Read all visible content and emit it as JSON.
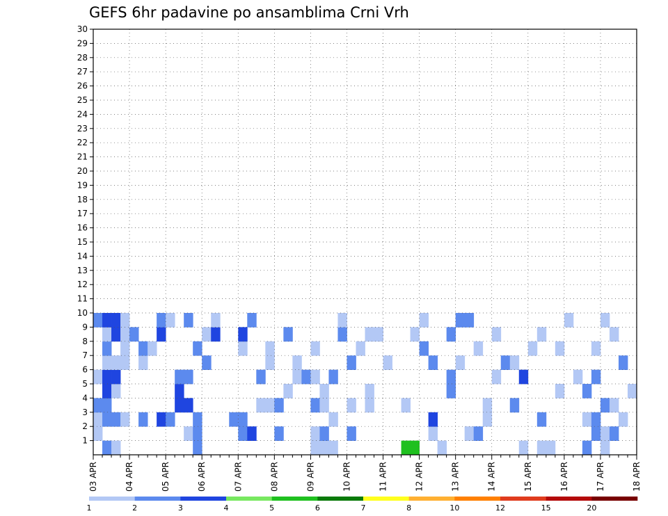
{
  "chart_data": {
    "type": "heatmap",
    "title": "GEFS 6hr padavine po ansamblima Crni Vrh",
    "xlabel": "",
    "ylabel": "",
    "x_tick_labels": [
      "03 APR",
      "04 APR",
      "05 APR",
      "06 APR",
      "07 APR",
      "08 APR",
      "09 APR",
      "10 APR",
      "11 APR",
      "12 APR",
      "13 APR",
      "14 APR",
      "15 APR",
      "16 APR",
      "17 APR",
      "18 APR"
    ],
    "y_tick_labels": [
      "1",
      "2",
      "3",
      "4",
      "5",
      "6",
      "7",
      "8",
      "9",
      "10",
      "11",
      "12",
      "13",
      "14",
      "15",
      "16",
      "17",
      "18",
      "19",
      "20",
      "21",
      "22",
      "23",
      "24",
      "25",
      "26",
      "27",
      "28",
      "29",
      "30"
    ],
    "xlim": [
      0,
      60
    ],
    "ylim": [
      0,
      30
    ],
    "x_unit_note": "6-hour steps after 03 APR 00Z",
    "grid": true,
    "legend_levels": [
      "1",
      "2",
      "3",
      "4",
      "5",
      "6",
      "7",
      "8",
      "10",
      "12",
      "15",
      "20"
    ],
    "legend_colors": [
      "#b3c8f5",
      "#5c8aee",
      "#1f45e0",
      "#78e860",
      "#1fc01f",
      "#0a7a0a",
      "#ffff1e",
      "#ffb032",
      "#ff8000",
      "#e03c1e",
      "#b40a0a",
      "#780000"
    ],
    "cells": [
      [
        1,
        1,
        2
      ],
      [
        2,
        1,
        1
      ],
      [
        34,
        1,
        5
      ],
      [
        35,
        1,
        5
      ],
      [
        38,
        1,
        1
      ],
      [
        11,
        1,
        2
      ],
      [
        49,
        1,
        1
      ],
      [
        50,
        1,
        1
      ],
      [
        54,
        1,
        2
      ],
      [
        56,
        1,
        1
      ],
      [
        47,
        1,
        1
      ],
      [
        25,
        1,
        1
      ],
      [
        24,
        1,
        1
      ],
      [
        26,
        1,
        1
      ],
      [
        0,
        2,
        1
      ],
      [
        10,
        2,
        1
      ],
      [
        11,
        2,
        2
      ],
      [
        16,
        2,
        2
      ],
      [
        17,
        2,
        3
      ],
      [
        20,
        2,
        2
      ],
      [
        24,
        2,
        1
      ],
      [
        25,
        2,
        2
      ],
      [
        28,
        2,
        2
      ],
      [
        37,
        2,
        1
      ],
      [
        41,
        2,
        1
      ],
      [
        42,
        2,
        2
      ],
      [
        55,
        2,
        2
      ],
      [
        56,
        2,
        1
      ],
      [
        57,
        2,
        2
      ],
      [
        0,
        3,
        1
      ],
      [
        1,
        3,
        2
      ],
      [
        2,
        3,
        2
      ],
      [
        3,
        3,
        1
      ],
      [
        5,
        3,
        2
      ],
      [
        7,
        3,
        3
      ],
      [
        8,
        3,
        2
      ],
      [
        11,
        3,
        2
      ],
      [
        15,
        3,
        2
      ],
      [
        16,
        3,
        2
      ],
      [
        26,
        3,
        1
      ],
      [
        37,
        3,
        3
      ],
      [
        43,
        3,
        1
      ],
      [
        49,
        3,
        2
      ],
      [
        54,
        3,
        1
      ],
      [
        55,
        3,
        2
      ],
      [
        58,
        3,
        1
      ],
      [
        0,
        4,
        2
      ],
      [
        1,
        4,
        2
      ],
      [
        9,
        4,
        3
      ],
      [
        10,
        4,
        3
      ],
      [
        18,
        4,
        1
      ],
      [
        19,
        4,
        1
      ],
      [
        20,
        4,
        2
      ],
      [
        24,
        4,
        2
      ],
      [
        25,
        4,
        1
      ],
      [
        28,
        4,
        1
      ],
      [
        30,
        4,
        1
      ],
      [
        34,
        4,
        1
      ],
      [
        43,
        4,
        1
      ],
      [
        46,
        4,
        2
      ],
      [
        56,
        4,
        2
      ],
      [
        57,
        4,
        1
      ],
      [
        1,
        5,
        3
      ],
      [
        2,
        5,
        1
      ],
      [
        9,
        5,
        3
      ],
      [
        21,
        5,
        1
      ],
      [
        25,
        5,
        1
      ],
      [
        30,
        5,
        1
      ],
      [
        39,
        5,
        2
      ],
      [
        51,
        5,
        1
      ],
      [
        54,
        5,
        2
      ],
      [
        59,
        5,
        1
      ],
      [
        0,
        6,
        1
      ],
      [
        1,
        6,
        3
      ],
      [
        2,
        6,
        3
      ],
      [
        9,
        6,
        2
      ],
      [
        10,
        6,
        2
      ],
      [
        18,
        6,
        2
      ],
      [
        22,
        6,
        1
      ],
      [
        23,
        6,
        2
      ],
      [
        24,
        6,
        1
      ],
      [
        26,
        6,
        2
      ],
      [
        39,
        6,
        2
      ],
      [
        44,
        6,
        1
      ],
      [
        47,
        6,
        3
      ],
      [
        53,
        6,
        1
      ],
      [
        55,
        6,
        2
      ],
      [
        1,
        7,
        1
      ],
      [
        2,
        7,
        1
      ],
      [
        3,
        7,
        1
      ],
      [
        5,
        7,
        1
      ],
      [
        12,
        7,
        2
      ],
      [
        19,
        7,
        1
      ],
      [
        22,
        7,
        1
      ],
      [
        28,
        7,
        2
      ],
      [
        32,
        7,
        1
      ],
      [
        37,
        7,
        2
      ],
      [
        40,
        7,
        1
      ],
      [
        45,
        7,
        2
      ],
      [
        46,
        7,
        1
      ],
      [
        58,
        7,
        2
      ],
      [
        1,
        8,
        2
      ],
      [
        3,
        8,
        1
      ],
      [
        5,
        8,
        2
      ],
      [
        6,
        8,
        1
      ],
      [
        11,
        8,
        2
      ],
      [
        16,
        8,
        1
      ],
      [
        19,
        8,
        1
      ],
      [
        24,
        8,
        1
      ],
      [
        29,
        8,
        1
      ],
      [
        36,
        8,
        2
      ],
      [
        42,
        8,
        1
      ],
      [
        48,
        8,
        1
      ],
      [
        51,
        8,
        1
      ],
      [
        55,
        8,
        1
      ],
      [
        1,
        9,
        1
      ],
      [
        2,
        9,
        3
      ],
      [
        3,
        9,
        1
      ],
      [
        4,
        9,
        2
      ],
      [
        7,
        9,
        3
      ],
      [
        12,
        9,
        1
      ],
      [
        13,
        9,
        3
      ],
      [
        16,
        9,
        3
      ],
      [
        21,
        9,
        2
      ],
      [
        27,
        9,
        2
      ],
      [
        30,
        9,
        1
      ],
      [
        31,
        9,
        1
      ],
      [
        35,
        9,
        1
      ],
      [
        39,
        9,
        2
      ],
      [
        44,
        9,
        1
      ],
      [
        49,
        9,
        1
      ],
      [
        57,
        9,
        1
      ],
      [
        0,
        10,
        2
      ],
      [
        1,
        10,
        3
      ],
      [
        2,
        10,
        3
      ],
      [
        3,
        10,
        1
      ],
      [
        7,
        10,
        2
      ],
      [
        8,
        10,
        1
      ],
      [
        10,
        10,
        2
      ],
      [
        13,
        10,
        1
      ],
      [
        17,
        10,
        2
      ],
      [
        27,
        10,
        1
      ],
      [
        36,
        10,
        1
      ],
      [
        40,
        10,
        2
      ],
      [
        41,
        10,
        2
      ],
      [
        52,
        10,
        1
      ],
      [
        56,
        10,
        1
      ]
    ]
  },
  "legend": {
    "labels": [
      "1",
      "2",
      "3",
      "4",
      "5",
      "6",
      "7",
      "8",
      "10",
      "12",
      "15",
      "20"
    ]
  }
}
